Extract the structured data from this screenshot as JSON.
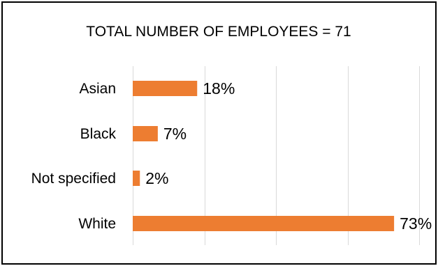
{
  "chart_data": {
    "type": "bar",
    "orientation": "horizontal",
    "title": "TOTAL NUMBER OF EMPLOYEES = 71",
    "categories": [
      "Asian",
      "Black",
      "Not specified",
      "White"
    ],
    "values": [
      18,
      7,
      2,
      73
    ],
    "value_labels": [
      "18%",
      "7%",
      "2%",
      "73%"
    ],
    "unit": "%",
    "xlim": [
      0,
      80
    ],
    "grid": true,
    "legend": "none",
    "bar_color": "#ed7d31"
  }
}
